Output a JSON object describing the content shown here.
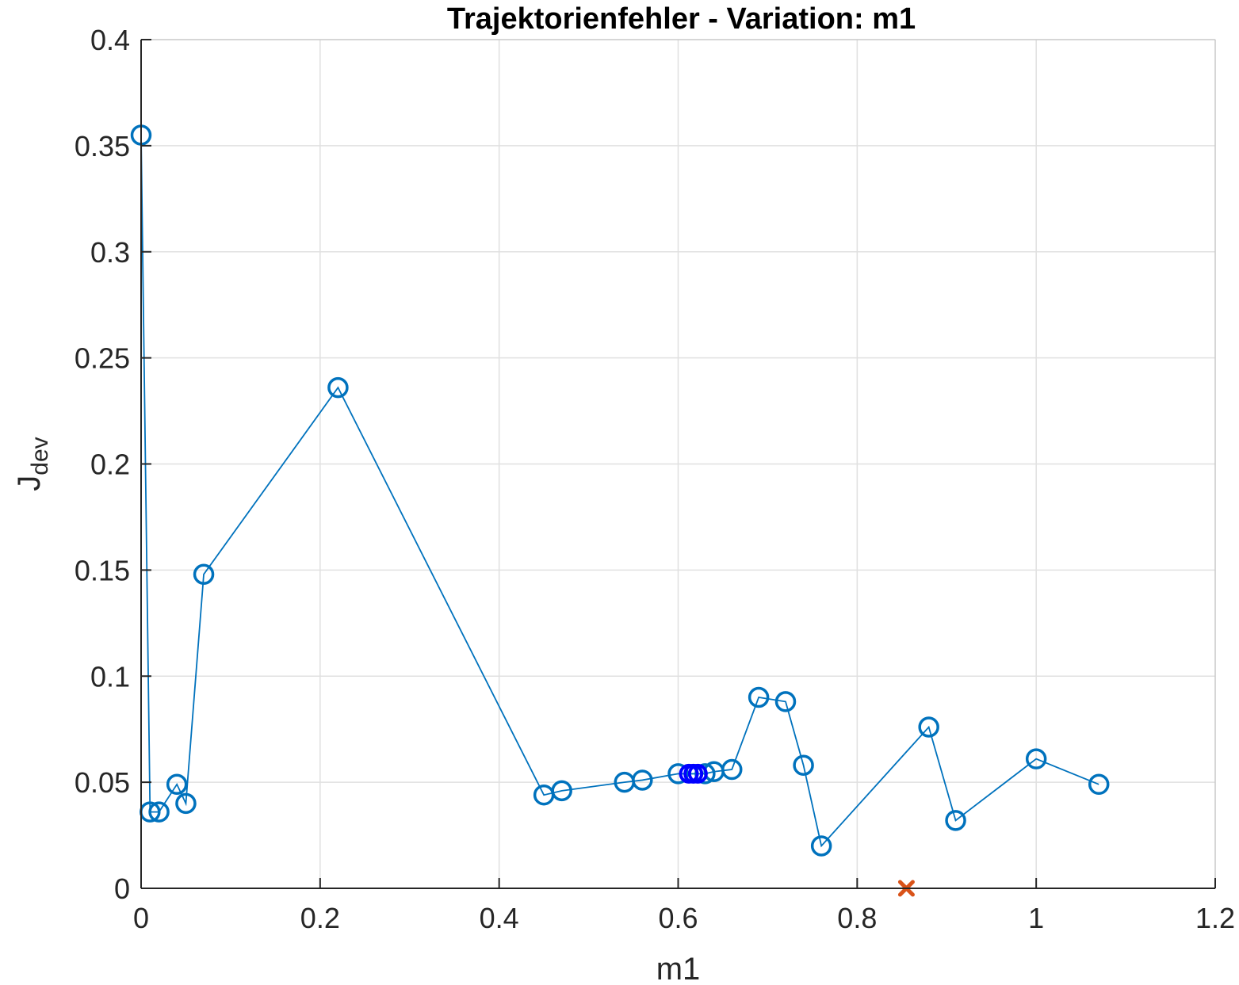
{
  "chart_data": {
    "type": "line",
    "title": "Trajektorienfehler - Variation: m1",
    "xlabel": "m1",
    "ylabel_main": "J",
    "ylabel_sub": "dev",
    "xlim": [
      0,
      1.2
    ],
    "ylim": [
      0,
      0.4
    ],
    "xticks": [
      0,
      0.2,
      0.4,
      0.6,
      0.8,
      1,
      1.2
    ],
    "xtick_labels": [
      "0",
      "0.2",
      "0.4",
      "0.6",
      "0.8",
      "1",
      "1.2"
    ],
    "yticks": [
      0,
      0.05,
      0.1,
      0.15,
      0.2,
      0.25,
      0.3,
      0.35,
      0.4
    ],
    "ytick_labels": [
      "0",
      "0.05",
      "0.1",
      "0.15",
      "0.2",
      "0.25",
      "0.3",
      "0.35",
      "0.4"
    ],
    "grid": true,
    "colors": {
      "series": "#0072BD",
      "highlight": "#0000FF",
      "marker_x": "#D95319",
      "axis": "#262626",
      "grid": "#E0E0E0"
    },
    "series": [
      {
        "name": "J_dev",
        "marker": "circle",
        "x": [
          0.0,
          0.01,
          0.02,
          0.04,
          0.05,
          0.07,
          0.22,
          0.45,
          0.47,
          0.54,
          0.56,
          0.6,
          0.63,
          0.64,
          0.66,
          0.69,
          0.72,
          0.74,
          0.76,
          0.88,
          0.91,
          1.0,
          1.07
        ],
        "y": [
          0.355,
          0.036,
          0.036,
          0.049,
          0.04,
          0.148,
          0.236,
          0.044,
          0.046,
          0.05,
          0.051,
          0.054,
          0.054,
          0.055,
          0.056,
          0.09,
          0.088,
          0.058,
          0.02,
          0.076,
          0.032,
          0.061,
          0.049
        ]
      }
    ],
    "highlight_points": {
      "x": [
        0.612,
        0.617,
        0.622
      ],
      "y": [
        0.054,
        0.054,
        0.054
      ]
    },
    "reference_marker": {
      "x": 0.855,
      "y": 0.0,
      "marker": "x"
    }
  }
}
